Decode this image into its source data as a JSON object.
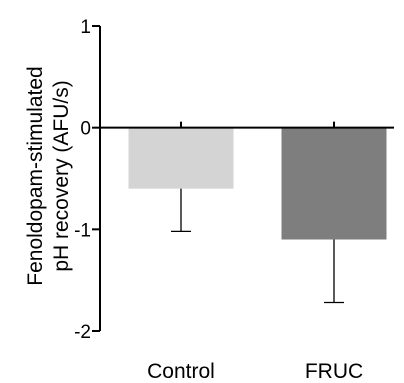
{
  "chart_data": {
    "type": "bar",
    "categories": [
      "Control",
      "FRUC"
    ],
    "values": [
      -0.6,
      -1.1
    ],
    "errors": [
      0.42,
      0.62
    ],
    "ylabel_lines": [
      "Fenoldopam-stimulated",
      "pH recovery (AFU/s)"
    ],
    "ylim": [
      -2,
      1
    ],
    "yticks": [
      1,
      0,
      -1,
      -2
    ],
    "ytick_labels": [
      "1",
      "0",
      "-1",
      "-2"
    ],
    "bar_colors": [
      "#d4d4d4",
      "#7e7e7e"
    ],
    "grid": false,
    "legend": "none"
  }
}
